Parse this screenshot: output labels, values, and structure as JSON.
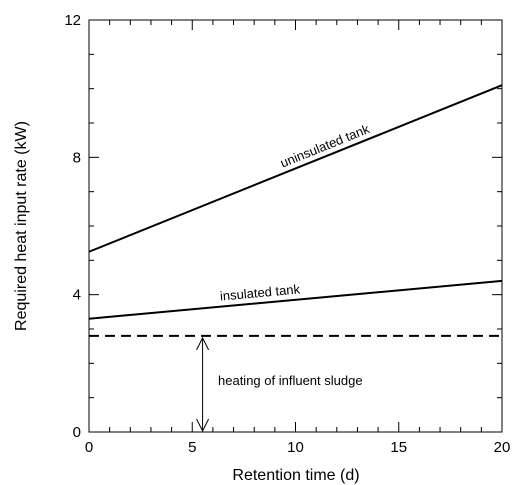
{
  "chart_data": {
    "type": "line",
    "xlabel": "Retention time (d)",
    "ylabel": "Required heat input rate (kW)",
    "xlim": [
      0,
      20
    ],
    "ylim": [
      0,
      12
    ],
    "x_ticks": [
      0,
      5,
      10,
      15,
      20
    ],
    "y_ticks": [
      0,
      4,
      8,
      12
    ],
    "x_minor_step": 1,
    "y_minor_step": 1,
    "grid": false,
    "series": [
      {
        "name": "uninsulated tank",
        "x": [
          0,
          20
        ],
        "y": [
          5.25,
          10.1
        ],
        "style": "solid",
        "color": "#000000"
      },
      {
        "name": "insulated tank",
        "x": [
          0,
          20
        ],
        "y": [
          3.3,
          4.4
        ],
        "style": "solid",
        "color": "#000000"
      },
      {
        "name": "",
        "x": [
          0,
          20
        ],
        "y": [
          2.8,
          2.8
        ],
        "style": "dashed",
        "color": "#000000"
      }
    ],
    "annotations": [
      {
        "text": "heating of influent sludge",
        "arrow_x": 5.5,
        "arrow_from": 2.8,
        "arrow_to": 0
      }
    ]
  }
}
